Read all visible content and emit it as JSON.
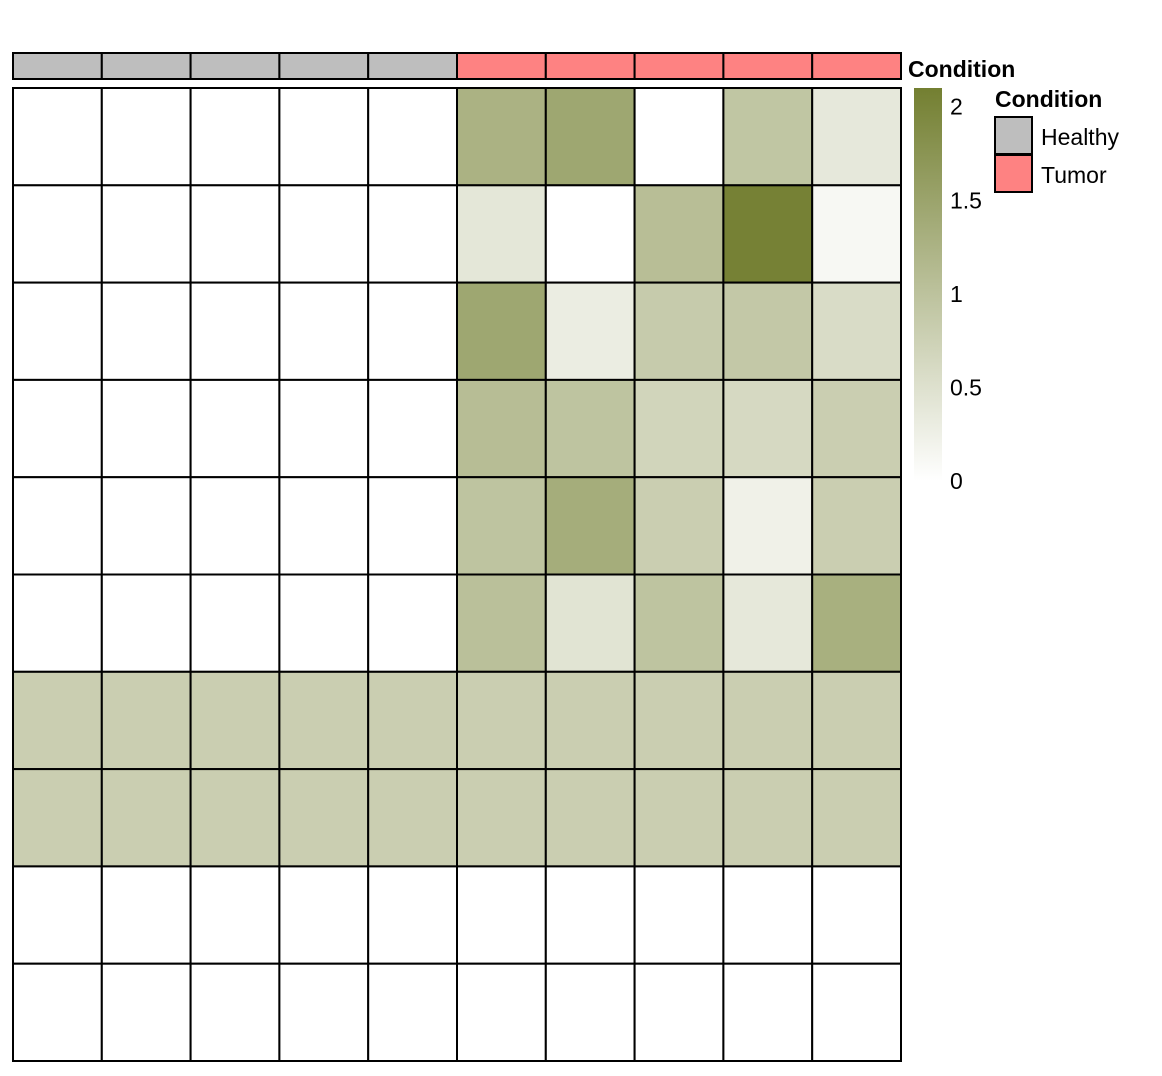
{
  "chart_data": {
    "type": "heatmap",
    "annotation": {
      "title": "Condition",
      "columns": [
        "Healthy",
        "Healthy",
        "Healthy",
        "Healthy",
        "Healthy",
        "Tumor",
        "Tumor",
        "Tumor",
        "Tumor",
        "Tumor"
      ]
    },
    "values": [
      [
        0,
        0,
        0,
        0,
        0,
        1.26,
        1.45,
        0.0,
        0.94,
        0.37
      ],
      [
        0,
        0,
        0,
        0,
        0,
        0.4,
        0.0,
        1.07,
        2.06,
        0.12
      ],
      [
        0,
        0,
        0,
        0,
        0,
        1.45,
        0.3,
        0.85,
        0.9,
        0.57
      ],
      [
        0,
        0,
        0,
        0,
        0,
        1.08,
        0.97,
        0.69,
        0.62,
        0.8
      ],
      [
        0,
        0,
        0,
        0,
        0,
        0.97,
        1.35,
        0.8,
        0.23,
        0.8
      ],
      [
        0,
        0,
        0,
        0,
        0,
        1.03,
        0.45,
        0.97,
        0.38,
        1.3
      ],
      [
        0.8,
        0.8,
        0.8,
        0.8,
        0.8,
        0.8,
        0.8,
        0.8,
        0.8,
        0.8
      ],
      [
        0.8,
        0.8,
        0.8,
        0.8,
        0.8,
        0.8,
        0.8,
        0.8,
        0.8,
        0.8
      ],
      [
        0,
        0,
        0,
        0,
        0,
        0,
        0,
        0,
        0,
        0
      ],
      [
        0,
        0,
        0,
        0,
        0,
        0,
        0,
        0,
        0,
        0
      ]
    ],
    "color_scale": {
      "min": 0,
      "max": 2.1,
      "low_color": "#ffffff",
      "high_color": "#737f31",
      "ticks": [
        "0",
        "0.5",
        "1",
        "1.5",
        "2"
      ]
    },
    "legend": {
      "title": "Condition",
      "entries": [
        {
          "label": "Healthy",
          "color": "#bebebe"
        },
        {
          "label": "Tumor",
          "color": "#fe8282"
        }
      ]
    }
  }
}
